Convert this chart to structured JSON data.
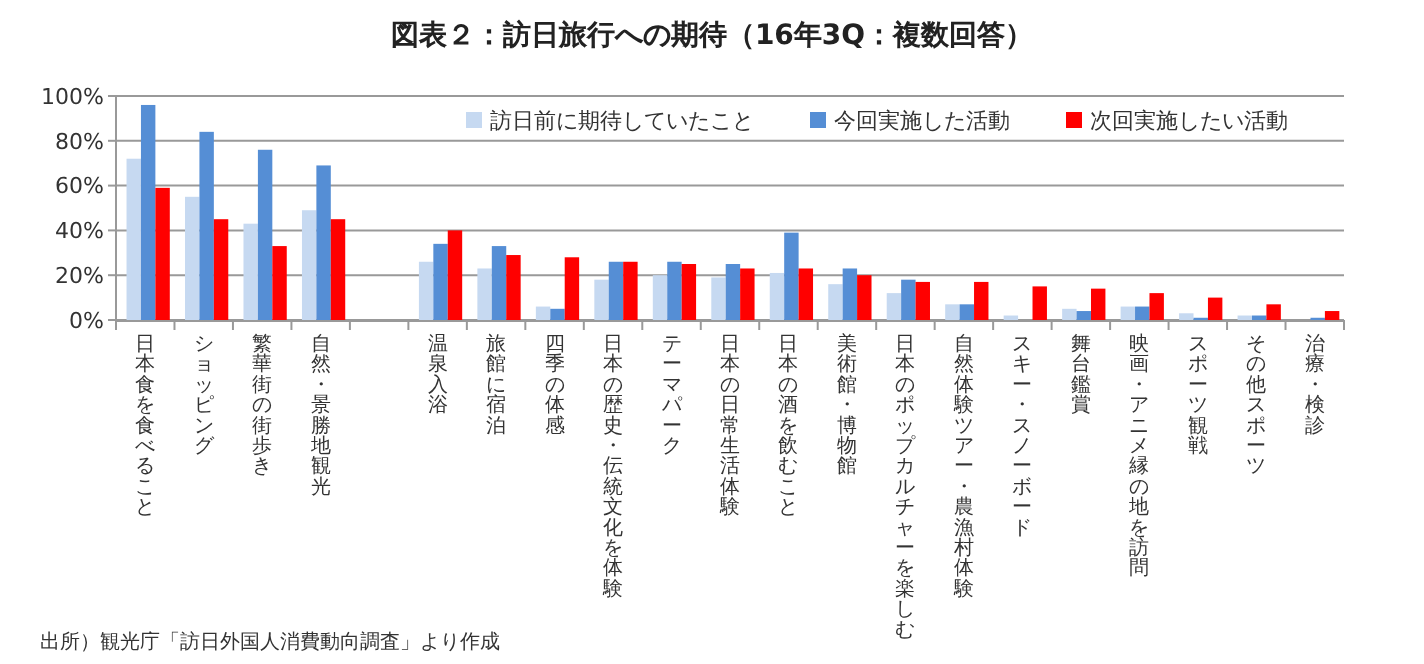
{
  "chart_data": {
    "type": "bar",
    "title": "図表２：訪日旅行への期待（16年3Q：複数回答）",
    "categories": [
      "日本食を食べること",
      "ショッピング",
      "繁華街の街歩き",
      "自然・景勝地観光",
      null,
      "温泉入浴",
      "旅館に宿泊",
      "四季の体感",
      "日本の歴史・伝統文化を体験",
      "テーマパーク",
      "日本の日常生活体験",
      "日本の酒を飲むこと",
      "美術館・博物館",
      "日本のポップカルチャーを楽しむ",
      "自然体験ツアー・農漁村体験",
      "スキー・スノーボード",
      "舞台鑑賞",
      "映画・アニメ縁の地を訪問",
      "スポーツ観戦",
      "その他スポーツ",
      "治療・検診"
    ],
    "series": [
      {
        "name": "訪日前に期待していたこと",
        "color": "#c6d9f1",
        "values": [
          72,
          55,
          43,
          49,
          null,
          26,
          23,
          6,
          18,
          20,
          19,
          21,
          16,
          12,
          7,
          2,
          5,
          6,
          3,
          2,
          0
        ]
      },
      {
        "name": "今回実施した活動",
        "color": "#558ed5",
        "values": [
          96,
          84,
          76,
          69,
          null,
          34,
          33,
          5,
          26,
          26,
          25,
          39,
          23,
          18,
          7,
          0,
          4,
          6,
          1,
          2,
          1
        ]
      },
      {
        "name": "次回実施したい活動",
        "color": "#ff0000",
        "values": [
          59,
          45,
          33,
          45,
          null,
          40,
          29,
          28,
          26,
          25,
          23,
          23,
          20,
          17,
          17,
          15,
          14,
          12,
          10,
          7,
          4
        ]
      }
    ],
    "ylim": [
      0,
      100
    ],
    "yticks": [
      {
        "value": 0,
        "label": "0%"
      },
      {
        "value": 20,
        "label": "20%"
      },
      {
        "value": 40,
        "label": "40%"
      },
      {
        "value": 60,
        "label": "60%"
      },
      {
        "value": 80,
        "label": "80%"
      },
      {
        "value": 100,
        "label": "100%"
      }
    ],
    "grid": "y",
    "legend": "top right",
    "annotations": [
      "出所）観光庁「訪日外国人消費動向調査」より作成"
    ]
  }
}
